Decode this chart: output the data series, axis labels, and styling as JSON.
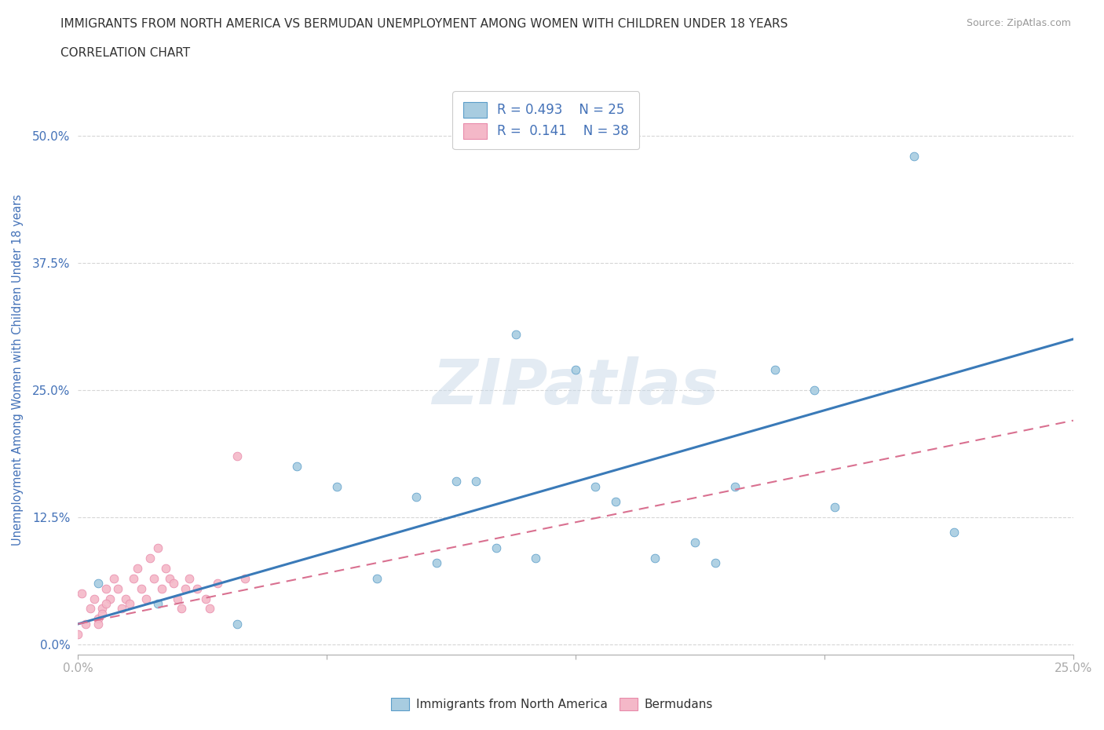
{
  "title": "IMMIGRANTS FROM NORTH AMERICA VS BERMUDAN UNEMPLOYMENT AMONG WOMEN WITH CHILDREN UNDER 18 YEARS",
  "subtitle": "CORRELATION CHART",
  "source": "Source: ZipAtlas.com",
  "ylabel": "Unemployment Among Women with Children Under 18 years",
  "xlim": [
    0.0,
    0.25
  ],
  "ylim": [
    -0.01,
    0.55
  ],
  "yticks": [
    0.0,
    0.125,
    0.25,
    0.375,
    0.5
  ],
  "ytick_labels": [
    "0.0%",
    "12.5%",
    "25.0%",
    "37.5%",
    "50.0%"
  ],
  "xticks": [
    0.0,
    0.0625,
    0.125,
    0.1875,
    0.25
  ],
  "xtick_labels": [
    "0.0%",
    "",
    "",
    "",
    "25.0%"
  ],
  "blue_r": 0.493,
  "blue_n": 25,
  "pink_r": 0.141,
  "pink_n": 38,
  "blue_scatter_x": [
    0.005,
    0.02,
    0.04,
    0.055,
    0.065,
    0.075,
    0.085,
    0.09,
    0.095,
    0.1,
    0.105,
    0.11,
    0.115,
    0.125,
    0.13,
    0.135,
    0.145,
    0.155,
    0.16,
    0.165,
    0.175,
    0.185,
    0.19,
    0.21,
    0.22
  ],
  "blue_scatter_y": [
    0.06,
    0.04,
    0.02,
    0.175,
    0.155,
    0.065,
    0.145,
    0.08,
    0.16,
    0.16,
    0.095,
    0.305,
    0.085,
    0.27,
    0.155,
    0.14,
    0.085,
    0.1,
    0.08,
    0.155,
    0.27,
    0.25,
    0.135,
    0.48,
    0.11
  ],
  "pink_scatter_x": [
    0.0,
    0.002,
    0.003,
    0.004,
    0.005,
    0.006,
    0.007,
    0.008,
    0.009,
    0.01,
    0.011,
    0.012,
    0.013,
    0.014,
    0.015,
    0.016,
    0.017,
    0.018,
    0.019,
    0.02,
    0.021,
    0.022,
    0.023,
    0.024,
    0.025,
    0.026,
    0.027,
    0.028,
    0.03,
    0.032,
    0.033,
    0.035,
    0.04,
    0.042,
    0.005,
    0.006,
    0.007,
    0.001
  ],
  "pink_scatter_y": [
    0.01,
    0.02,
    0.035,
    0.045,
    0.025,
    0.035,
    0.055,
    0.045,
    0.065,
    0.055,
    0.035,
    0.045,
    0.04,
    0.065,
    0.075,
    0.055,
    0.045,
    0.085,
    0.065,
    0.095,
    0.055,
    0.075,
    0.065,
    0.06,
    0.045,
    0.035,
    0.055,
    0.065,
    0.055,
    0.045,
    0.035,
    0.06,
    0.185,
    0.065,
    0.02,
    0.03,
    0.04,
    0.05
  ],
  "blue_line_x": [
    0.0,
    0.25
  ],
  "blue_line_y": [
    0.02,
    0.3
  ],
  "pink_line_x": [
    0.0,
    0.25
  ],
  "pink_line_y": [
    0.02,
    0.22
  ],
  "blue_color": "#a8cce0",
  "blue_edge_color": "#5b9dc9",
  "blue_line_color": "#3a7ab8",
  "pink_color": "#f4b8c8",
  "pink_edge_color": "#e88aaa",
  "pink_line_color": "#d97090",
  "watermark": "ZIPatlas",
  "background_color": "#ffffff",
  "grid_color": "#cccccc",
  "title_color": "#333333",
  "axis_label_color": "#4472b8",
  "tick_color": "#4472b8",
  "legend_r_color": "#4472b8"
}
